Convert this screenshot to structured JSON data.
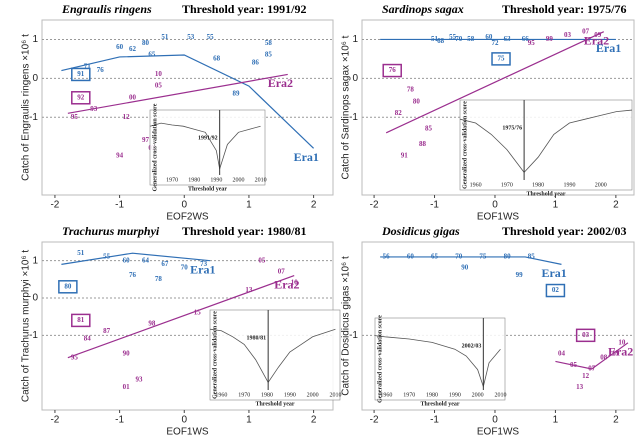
{
  "chart_data": [
    {
      "type": "scatter",
      "title": "Engraulis ringens",
      "subtitle": "Threshold year: 1991/92",
      "x_label": "EOF2WS",
      "y_label": "Catch of Engraulis ringens ×10⁶ t",
      "xlim": [
        -2.2,
        2.3
      ],
      "ylim": [
        -3,
        1.5
      ],
      "xticks": [
        -2,
        -1,
        0,
        1,
        2
      ],
      "yticks": [
        -1,
        0,
        1
      ],
      "series": [
        {
          "name": "Era1",
          "color": "#2f6fb5",
          "boxed": 14,
          "x": [
            -0.3,
            0.1,
            0.4,
            1.3,
            -1.0,
            -0.8,
            -0.5,
            0.5,
            -1.5,
            -1.3,
            -0.6,
            1.3,
            1.1,
            0.8,
            -1.6
          ],
          "values": [
            1.05,
            1.05,
            1.05,
            0.9,
            0.8,
            0.75,
            0.6,
            0.5,
            0.3,
            0.2,
            0.9,
            0.6,
            0.4,
            -0.4,
            0.1
          ],
          "labels": [
            "51",
            "53",
            "55",
            "58",
            "60",
            "62",
            "65",
            "68",
            "71",
            "76",
            "80",
            "85",
            "86",
            "89",
            "91"
          ],
          "fit_x": [
            -1.9,
            -1.0,
            0.0,
            1.0,
            2.0
          ],
          "fit_y": [
            0.2,
            0.55,
            0.6,
            -0.2,
            -1.8
          ]
        },
        {
          "name": "Era2",
          "color": "#9b2f8f",
          "boxed": 0,
          "x": [
            -1.6,
            -1.4,
            -1.0,
            -1.7,
            -0.6,
            -0.8,
            -0.5,
            -0.4,
            -0.4,
            -0.9
          ],
          "values": [
            -0.5,
            -0.8,
            -2.0,
            -1.0,
            -1.6,
            -0.5,
            -1.8,
            -0.2,
            0.1,
            -1.0
          ],
          "labels": [
            "92",
            "93",
            "94",
            "95",
            "97",
            "00",
            "02",
            "05",
            "10",
            "12"
          ],
          "fit_x": [
            -1.8,
            1.6
          ],
          "fit_y": [
            -0.9,
            0.1
          ]
        }
      ],
      "inset": {
        "x_label": "Threshold year",
        "y_label": "Generalized cross-validation score",
        "threshold": {
          "value": 1991.5,
          "label": "1991/92"
        },
        "xlim": [
          1960,
          2012
        ],
        "xticks": [
          1970,
          1980,
          1990,
          2000,
          2010
        ],
        "x": [
          1960,
          1965,
          1970,
          1975,
          1980,
          1985,
          1990,
          1991.5,
          1995,
          2000,
          2005,
          2010
        ],
        "values": [
          0.8,
          0.85,
          0.82,
          0.8,
          0.75,
          0.7,
          0.4,
          0.1,
          0.5,
          0.7,
          0.75,
          0.8
        ]
      }
    },
    {
      "type": "scatter",
      "title": "Sardinops sagax",
      "subtitle": "Threshold year: 1975/76",
      "x_label": "EOF1WS",
      "y_label": "Catch of Sardinops sagax ×10⁶ t",
      "xlim": [
        -2.2,
        2.3
      ],
      "ylim": [
        -3,
        1.5
      ],
      "xticks": [
        -2,
        -1,
        0,
        1,
        2
      ],
      "yticks": [
        -1,
        0,
        1
      ],
      "series": [
        {
          "name": "Era1",
          "color": "#2f6fb5",
          "boxed": 9,
          "x": [
            -1.0,
            -0.7,
            -0.4,
            -0.1,
            0.2,
            0.5,
            -0.9,
            -0.6,
            0.0,
            0.1
          ],
          "values": [
            1.0,
            1.05,
            1.0,
            1.05,
            1.0,
            1.0,
            0.95,
            1.0,
            0.9,
            0.5
          ],
          "labels": [
            "51",
            "55",
            "58",
            "60",
            "63",
            "66",
            "68",
            "70",
            "72",
            "75"
          ],
          "fit_x": [
            -1.9,
            0.5,
            2.0
          ],
          "fit_y": [
            1.0,
            1.0,
            1.0
          ]
        },
        {
          "name": "Era2",
          "color": "#9b2f8f",
          "boxed": 0,
          "x": [
            -1.7,
            -1.4,
            -1.3,
            -1.6,
            -1.1,
            -1.2,
            -1.5,
            0.6,
            0.9,
            1.2,
            1.5,
            1.7
          ],
          "values": [
            0.2,
            -0.3,
            -0.6,
            -0.9,
            -1.3,
            -1.7,
            -2.0,
            0.9,
            1.0,
            1.1,
            1.2,
            1.1
          ],
          "labels": [
            "76",
            "78",
            "80",
            "82",
            "85",
            "88",
            "91",
            "95",
            "99",
            "03",
            "07",
            "09"
          ],
          "fit_x": [
            -1.8,
            1.8
          ],
          "fit_y": [
            -1.4,
            1.2
          ]
        }
      ],
      "inset": {
        "x_label": "Threshold year",
        "y_label": "Generalized cross-validation score",
        "threshold": {
          "value": 1975.5,
          "label": "1975/76"
        },
        "xlim": [
          1955,
          2010
        ],
        "xticks": [
          1960,
          1970,
          1980,
          1990,
          2000
        ],
        "x": [
          1955,
          1960,
          1965,
          1970,
          1975.5,
          1980,
          1985,
          1990,
          1995,
          2000,
          2005,
          2010
        ],
        "values": [
          0.8,
          0.75,
          0.6,
          0.4,
          0.1,
          0.3,
          0.6,
          0.75,
          0.8,
          0.85,
          0.9,
          0.92
        ]
      }
    },
    {
      "type": "scatter",
      "title": "Trachurus murphyi",
      "subtitle": "Threshold year: 1980/81",
      "x_label": "EOF1WS",
      "y_label": "Catch of Trachurus murphyi ×10⁶ t",
      "xlim": [
        -2.2,
        2.3
      ],
      "ylim": [
        -3,
        1.5
      ],
      "xticks": [
        -2,
        -1,
        0,
        1,
        2
      ],
      "yticks": [
        -1,
        0,
        1
      ],
      "series": [
        {
          "name": "Era1",
          "color": "#2f6fb5",
          "boxed": 9,
          "x": [
            -1.6,
            -1.2,
            -0.9,
            -0.6,
            -0.3,
            0.0,
            0.3,
            -0.8,
            -0.4,
            -1.8
          ],
          "values": [
            1.2,
            1.1,
            1.0,
            1.0,
            0.9,
            0.8,
            0.9,
            0.6,
            0.5,
            0.3
          ],
          "labels": [
            "51",
            "55",
            "60",
            "64",
            "67",
            "70",
            "73",
            "76",
            "78",
            "80"
          ],
          "fit_x": [
            -1.9,
            -0.8,
            0.4
          ],
          "fit_y": [
            0.9,
            1.2,
            1.0
          ]
        },
        {
          "name": "Era2",
          "color": "#9b2f8f",
          "boxed": 0,
          "x": [
            -1.6,
            -1.5,
            -1.2,
            -0.9,
            -0.7,
            -1.7,
            -0.5,
            -0.9,
            1.2,
            1.5,
            1.7,
            1.0,
            0.2
          ],
          "values": [
            -0.6,
            -1.1,
            -0.9,
            -1.5,
            -2.2,
            -1.6,
            -0.7,
            -2.4,
            1.0,
            0.7,
            0.4,
            0.2,
            -0.4
          ],
          "labels": [
            "81",
            "84",
            "87",
            "90",
            "93",
            "95",
            "98",
            "01",
            "05",
            "07",
            "10",
            "13",
            "15"
          ],
          "fit_x": [
            -1.8,
            1.7
          ],
          "fit_y": [
            -1.6,
            0.6
          ]
        }
      ],
      "inset": {
        "x_label": "Threshold year",
        "y_label": "Generalized cross-validation score",
        "threshold": {
          "value": 1980.5,
          "label": "1980/81"
        },
        "xlim": [
          1955,
          2012
        ],
        "xticks": [
          1960,
          1970,
          1980,
          1990,
          2000,
          2010
        ],
        "x": [
          1955,
          1960,
          1965,
          1970,
          1975,
          1980.5,
          1985,
          1990,
          1995,
          2000,
          2005,
          2010
        ],
        "values": [
          0.8,
          0.78,
          0.7,
          0.6,
          0.4,
          0.1,
          0.3,
          0.5,
          0.6,
          0.7,
          0.75,
          0.8
        ]
      }
    },
    {
      "type": "scatter",
      "title": "Dosidicus gigas",
      "subtitle": "Threshold year: 2002/03",
      "x_label": "EOF1WS",
      "y_label": "Catch of Dosidicus gigas ×10⁶ t",
      "xlim": [
        -2.2,
        2.3
      ],
      "ylim": [
        -3,
        1.5
      ],
      "xticks": [
        -2,
        -1,
        0,
        1,
        2
      ],
      "yticks": [
        -1
      ],
      "series": [
        {
          "name": "Era1",
          "color": "#2f6fb5",
          "boxed": 9,
          "x": [
            -1.8,
            -1.4,
            -1.0,
            -0.6,
            -0.2,
            0.2,
            0.6,
            -0.5,
            0.4,
            1.0
          ],
          "values": [
            1.1,
            1.1,
            1.1,
            1.1,
            1.1,
            1.1,
            1.1,
            0.8,
            0.6,
            0.2
          ],
          "labels": [
            "56",
            "60",
            "65",
            "70",
            "75",
            "80",
            "85",
            "90",
            "99",
            "02"
          ],
          "fit_x": [
            -1.9,
            0.5,
            1.1
          ],
          "fit_y": [
            1.1,
            1.1,
            0.9
          ]
        },
        {
          "name": "Era2",
          "color": "#9b2f8f",
          "boxed": 0,
          "x": [
            1.5,
            1.1,
            1.3,
            1.6,
            1.8,
            2.0,
            2.1,
            1.5,
            1.4
          ],
          "values": [
            -1.0,
            -1.5,
            -1.8,
            -1.9,
            -1.6,
            -1.5,
            -1.2,
            -2.1,
            -2.4
          ],
          "labels": [
            "03",
            "04",
            "05",
            "07",
            "08",
            "09",
            "10",
            "12",
            "13"
          ],
          "fit_x": [
            1.0,
            1.6,
            2.2
          ],
          "fit_y": [
            -1.7,
            -1.9,
            -1.2
          ]
        }
      ],
      "inset": {
        "x_label": "Threshold year",
        "y_label": "Generalized cross-validation score",
        "threshold": {
          "value": 2002.5,
          "label": "2002/03"
        },
        "xlim": [
          1955,
          2012
        ],
        "xticks": [
          1960,
          1970,
          1980,
          1990,
          2000,
          2010
        ],
        "x": [
          1955,
          1960,
          1970,
          1980,
          1990,
          1995,
          2000,
          2002.5,
          2005,
          2010
        ],
        "values": [
          0.8,
          0.78,
          0.75,
          0.7,
          0.6,
          0.5,
          0.3,
          0.05,
          0.4,
          0.6
        ]
      }
    }
  ]
}
